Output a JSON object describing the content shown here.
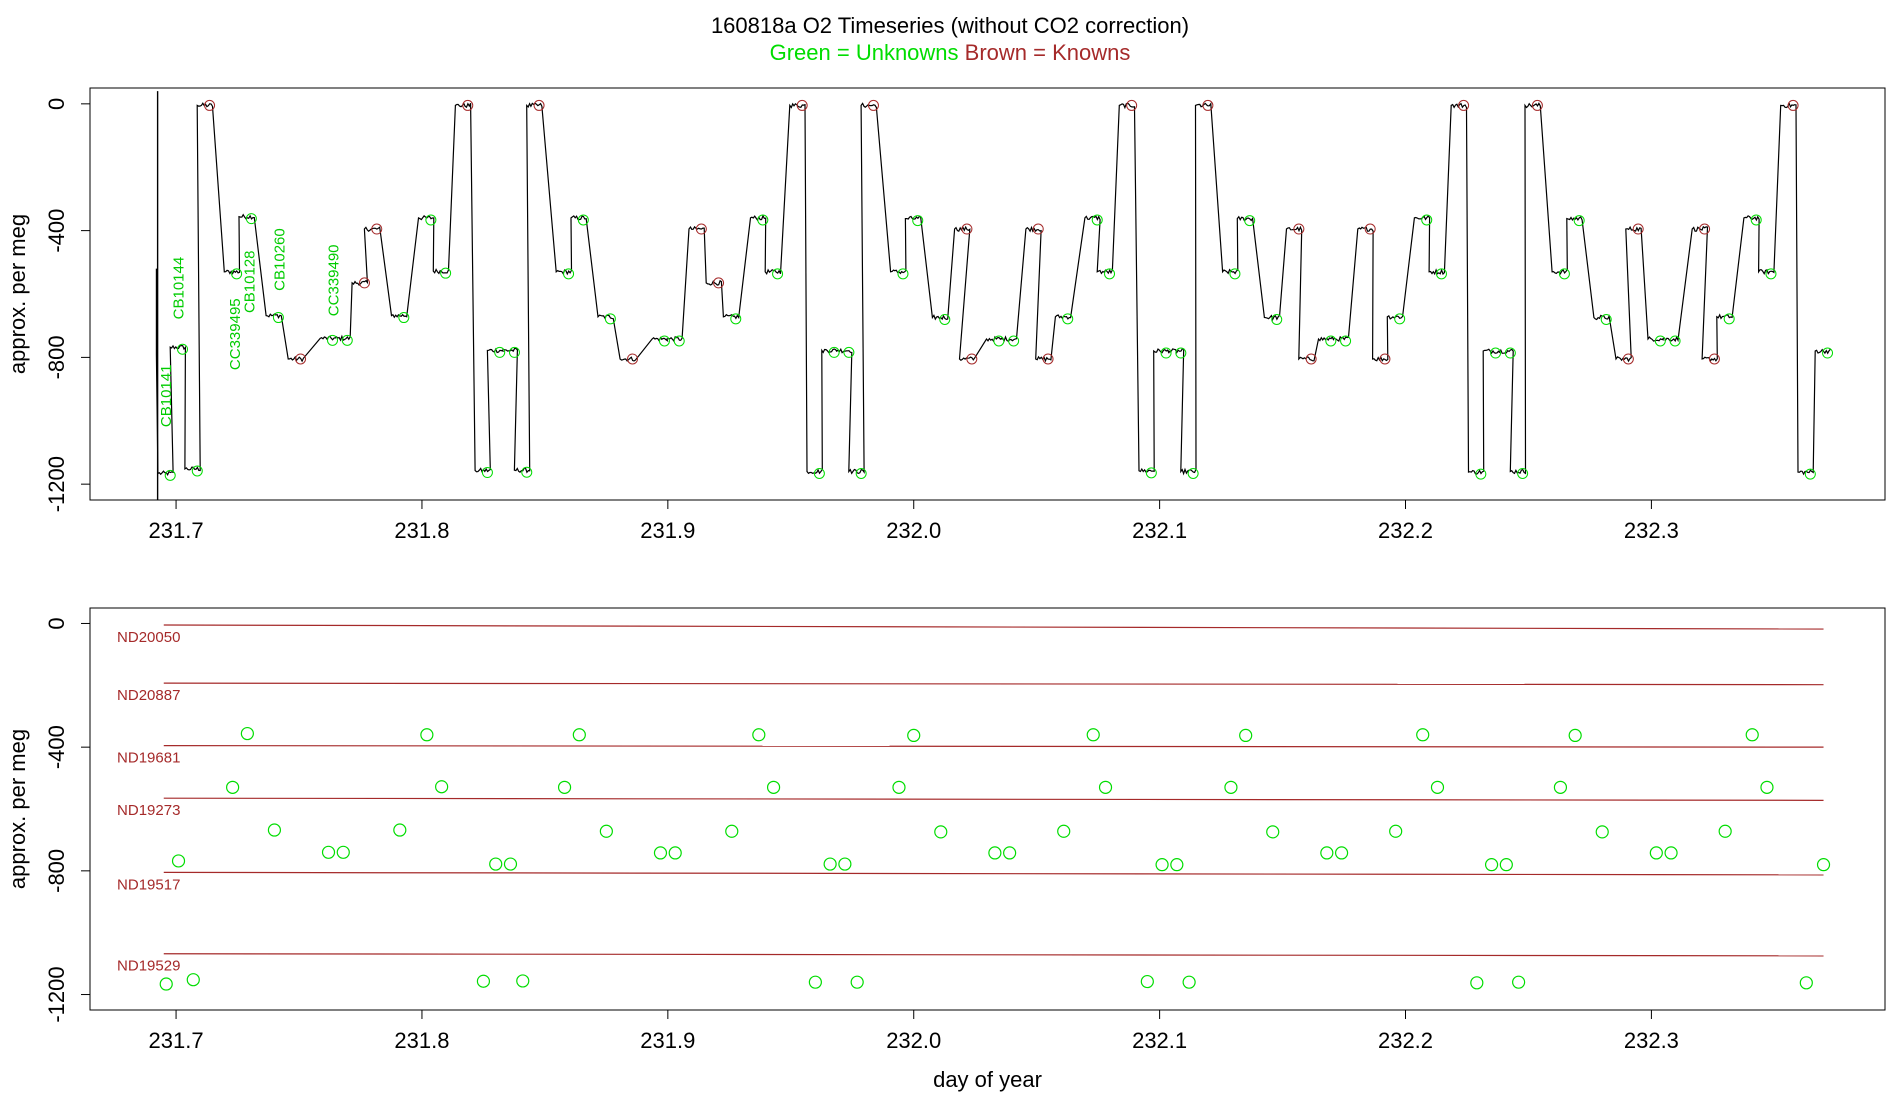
{
  "title": "160818a   O2 Timeseries (without CO2 correction)",
  "legend": {
    "green": "Green = Unknowns",
    "brown": "Brown = Knowns"
  },
  "colors": {
    "unknown": "#00dd00",
    "known": "#a52a2a",
    "trace": "#000000"
  },
  "chart_data": [
    {
      "type": "line",
      "name": "timeseries",
      "ylabel": "approx. per meg",
      "xlim": [
        231.665,
        232.395
      ],
      "ylim": [
        -1250,
        50
      ],
      "x_ticks": [
        231.7,
        231.8,
        231.9,
        232.0,
        232.1,
        232.2,
        232.3
      ],
      "x_tick_labels": [
        "231.7",
        "231.8",
        "231.9",
        "232.0",
        "232.1",
        "232.2",
        "232.3"
      ],
      "y_ticks": [
        0,
        -400,
        -800,
        -1200
      ],
      "y_tick_labels": [
        "0",
        "-400",
        "-800",
        "-1200"
      ],
      "annotations": [
        {
          "text": "CB10141",
          "x": 231.698,
          "y": -1020
        },
        {
          "text": "CB10144",
          "x": 231.703,
          "y": -680
        },
        {
          "text": "CC339495",
          "x": 231.726,
          "y": -840
        },
        {
          "text": "CB10128",
          "x": 231.732,
          "y": -660
        },
        {
          "text": "CB10260",
          "x": 231.744,
          "y": -590
        },
        {
          "text": "CC339490",
          "x": 231.766,
          "y": -670
        }
      ]
    },
    {
      "type": "scatter",
      "name": "summary",
      "xlabel": "day of year",
      "ylabel": "approx. per meg",
      "xlim": [
        231.665,
        232.395
      ],
      "ylim": [
        -1250,
        50
      ],
      "x_ticks": [
        231.7,
        231.8,
        231.9,
        232.0,
        232.1,
        232.2,
        232.3
      ],
      "x_tick_labels": [
        "231.7",
        "231.8",
        "231.9",
        "232.0",
        "232.1",
        "232.2",
        "232.3"
      ],
      "y_ticks": [
        0,
        -400,
        -800,
        -1200
      ],
      "y_tick_labels": [
        "0",
        "-400",
        "-800",
        "-1200"
      ],
      "known_lines": [
        {
          "name": "ND20050",
          "start": -5,
          "end": -18
        },
        {
          "name": "ND20887",
          "start": -193,
          "end": -198
        },
        {
          "name": "ND19681",
          "start": -395,
          "end": -400
        },
        {
          "name": "ND19273",
          "start": -565,
          "end": -572
        },
        {
          "name": "ND19517",
          "start": -805,
          "end": -813
        },
        {
          "name": "ND19529",
          "start": -1068,
          "end": -1075
        }
      ],
      "unknown_points": {
        "x": [
          231.696,
          231.701,
          231.707,
          231.723,
          231.729,
          231.74,
          231.762,
          231.768,
          231.791,
          231.802,
          231.808,
          231.825,
          231.83,
          231.836,
          231.841,
          231.858,
          231.864,
          231.875,
          231.897,
          231.903,
          231.926,
          231.937,
          231.943,
          231.96,
          231.966,
          231.972,
          231.977,
          231.994,
          232.0,
          232.011,
          232.033,
          232.039,
          232.061,
          232.073,
          232.078,
          232.095,
          232.101,
          232.107,
          232.112,
          232.129,
          232.135,
          232.146,
          232.168,
          232.174,
          232.196,
          232.207,
          232.213,
          232.229,
          232.235,
          232.241,
          232.246,
          232.263,
          232.269,
          232.28,
          232.302,
          232.308,
          232.33,
          232.341,
          232.347,
          232.363,
          232.37
        ],
        "y": [
          -1166,
          -768,
          -1152,
          -530,
          -356,
          -668,
          -740,
          -740,
          -668,
          -360,
          -528,
          -1157,
          -778,
          -778,
          -1156,
          -530,
          -360,
          -672,
          -742,
          -742,
          -672,
          -360,
          -530,
          -1160,
          -778,
          -778,
          -1160,
          -530,
          -362,
          -674,
          -742,
          -742,
          -672,
          -360,
          -530,
          -1158,
          -780,
          -780,
          -1160,
          -530,
          -362,
          -674,
          -742,
          -742,
          -672,
          -360,
          -530,
          -1162,
          -780,
          -780,
          -1160,
          -530,
          -362,
          -674,
          -742,
          -742,
          -672,
          -360,
          -530,
          -1162,
          -780
        ]
      }
    }
  ]
}
